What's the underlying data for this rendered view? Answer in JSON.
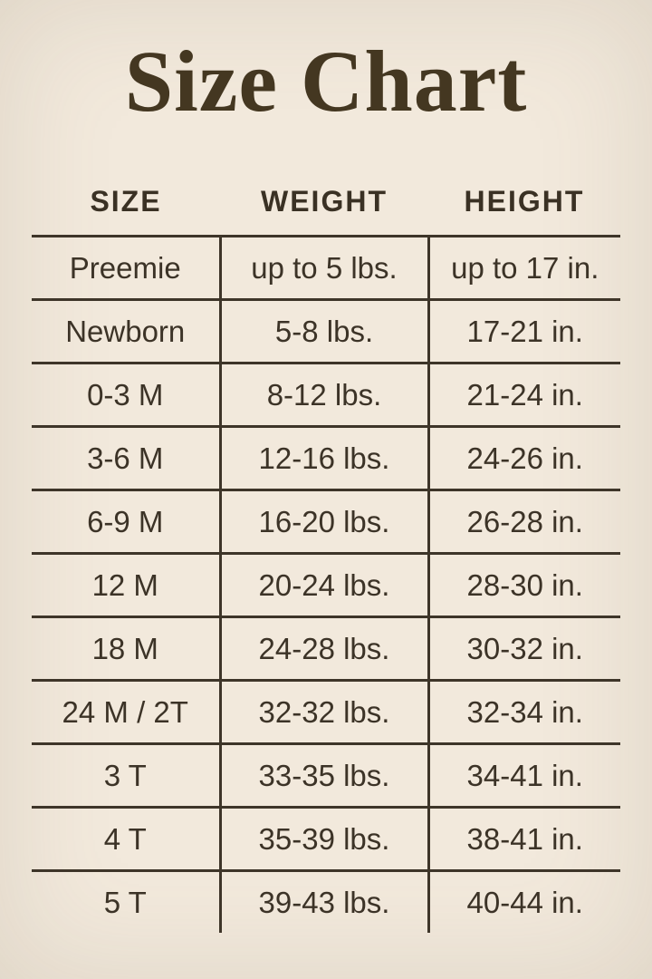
{
  "chart_data": {
    "type": "table",
    "title": "Size Chart",
    "columns": [
      "SIZE",
      "WEIGHT",
      "HEIGHT"
    ],
    "rows": [
      [
        "Preemie",
        "up to 5 lbs.",
        "up to 17 in."
      ],
      [
        "Newborn",
        "5-8 lbs.",
        "17-21 in."
      ],
      [
        "0-3 M",
        "8-12 lbs.",
        "21-24 in."
      ],
      [
        "3-6 M",
        "12-16 lbs.",
        "24-26 in."
      ],
      [
        "6-9 M",
        "16-20 lbs.",
        "26-28 in."
      ],
      [
        "12 M",
        "20-24 lbs.",
        "28-30 in."
      ],
      [
        "18 M",
        "24-28 lbs.",
        "30-32 in."
      ],
      [
        "24 M / 2T",
        "32-32 lbs.",
        "32-34 in."
      ],
      [
        "3 T",
        "33-35 lbs.",
        "34-41 in."
      ],
      [
        "4 T",
        "35-39 lbs.",
        "38-41 in."
      ],
      [
        "5 T",
        "39-43 lbs.",
        "40-44 in."
      ]
    ],
    "layout_hints": {
      "grid": "horizontal rules between rows, vertical rules between body columns only, no outer frame, no bottom rule"
    }
  },
  "colors": {
    "background": "#f2e9dc",
    "title_text": "#443721",
    "body_text": "#3c3327",
    "rule_lines": "#3e3529"
  }
}
